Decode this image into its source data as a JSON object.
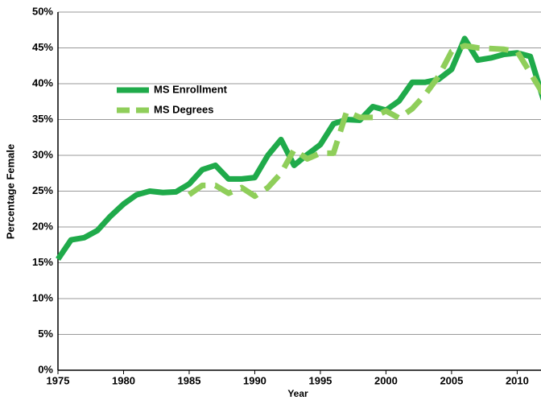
{
  "chart_data": {
    "type": "line",
    "x_label": "Year",
    "y_label": "Percentage Female",
    "x": [
      1975,
      1976,
      1977,
      1978,
      1979,
      1980,
      1981,
      1982,
      1983,
      1984,
      1985,
      1986,
      1987,
      1988,
      1989,
      1990,
      1991,
      1992,
      1993,
      1994,
      1995,
      1996,
      1997,
      1998,
      1999,
      2000,
      2001,
      2002,
      2003,
      2004,
      2005,
      2006,
      2007,
      2008,
      2009,
      2010,
      2011,
      2012
    ],
    "series": [
      {
        "name": "MS Enrollment",
        "color": "#1faa4a",
        "dashed": false,
        "values": [
          15.5,
          18.2,
          18.5,
          19.5,
          21.5,
          23.2,
          24.5,
          25,
          24.8,
          24.9,
          26,
          28,
          28.6,
          26.7,
          26.7,
          26.9,
          30,
          32.2,
          28.6,
          30.1,
          31.5,
          34.4,
          35,
          34.9,
          36.8,
          36.3,
          37.6,
          40.2,
          40.2,
          40.6,
          42,
          46.3,
          43.3,
          43.6,
          44.1,
          44.3,
          43.8,
          37.8
        ]
      },
      {
        "name": "MS Degrees",
        "color": "#8fce5a",
        "dashed": true,
        "values": [
          null,
          null,
          null,
          null,
          null,
          null,
          null,
          null,
          null,
          null,
          24.5,
          25.8,
          25.8,
          24.7,
          25.5,
          24.3,
          25.5,
          27.5,
          30.8,
          29.5,
          30.3,
          30.3,
          36.1,
          35.3,
          35.3,
          36.2,
          35.2,
          36.5,
          38.5,
          41,
          44.5,
          45.3,
          45,
          44.9,
          44.8,
          44.5,
          41.5,
          38.5
        ]
      }
    ],
    "xlim": [
      1975,
      2012
    ],
    "xticks": [
      1975,
      1980,
      1985,
      1990,
      1995,
      2000,
      2005,
      2010
    ],
    "ylim": [
      0,
      50
    ],
    "yticks": [
      {
        "value": 0,
        "label": "0%"
      },
      {
        "value": 5,
        "label": "5%"
      },
      {
        "value": 10,
        "label": "10%"
      },
      {
        "value": 15,
        "label": "15%"
      },
      {
        "value": 20,
        "label": "20%"
      },
      {
        "value": 25,
        "label": "25%"
      },
      {
        "value": 30,
        "label": "30%"
      },
      {
        "value": 35,
        "label": "35%"
      },
      {
        "value": 40,
        "label": "40%"
      },
      {
        "value": 45,
        "label": "45%"
      },
      {
        "value": 50,
        "label": "50%"
      }
    ],
    "grid": true,
    "legend": "upper left"
  }
}
